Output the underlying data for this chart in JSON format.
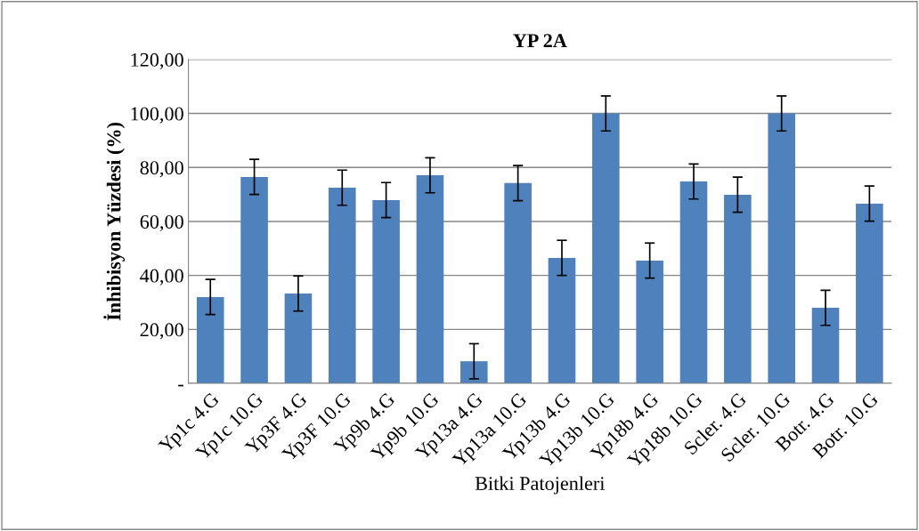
{
  "chart_data": {
    "type": "bar",
    "title": "YP 2A",
    "xlabel": "Bitki Patojenleri",
    "ylabel": "İnhibisyon Yüzdesi (%)",
    "categories": [
      "Yp1c 4.G",
      "Yp1c 10.G",
      "Yp3F 4.G",
      "Yp3F 10.G",
      "Yp9b 4.G",
      "Yp9b 10.G",
      "Yp13a 4.G",
      "Yp13a 10.G",
      "Yp13b 4.G",
      "Yp13b 10.G",
      "Yp18b 4.G",
      "Yp18b 10.G",
      "Scler. 4.G",
      "Scler. 10.G",
      "Botr. 4.G",
      "Botr. 10.G"
    ],
    "values": [
      32.0,
      76.5,
      33.3,
      72.5,
      67.9,
      77.1,
      8.2,
      74.2,
      46.5,
      100.0,
      45.5,
      74.8,
      69.9,
      100.0,
      28.0,
      66.6
    ],
    "errors": [
      6.5,
      6.5,
      6.5,
      6.5,
      6.5,
      6.5,
      6.5,
      6.5,
      6.5,
      6.5,
      6.5,
      6.5,
      6.5,
      6.5,
      6.5,
      6.5
    ],
    "color": "#4f81bd",
    "ylim": [
      0,
      120
    ],
    "yticks": [
      {
        "value": 0,
        "label": "-"
      },
      {
        "value": 20,
        "label": "20,00"
      },
      {
        "value": 40,
        "label": "40,00"
      },
      {
        "value": 60,
        "label": "60,00"
      },
      {
        "value": 80,
        "label": "80,00"
      },
      {
        "value": 100,
        "label": "100,00"
      },
      {
        "value": 120,
        "label": "120,00"
      }
    ],
    "grid": "y",
    "legend": false
  }
}
